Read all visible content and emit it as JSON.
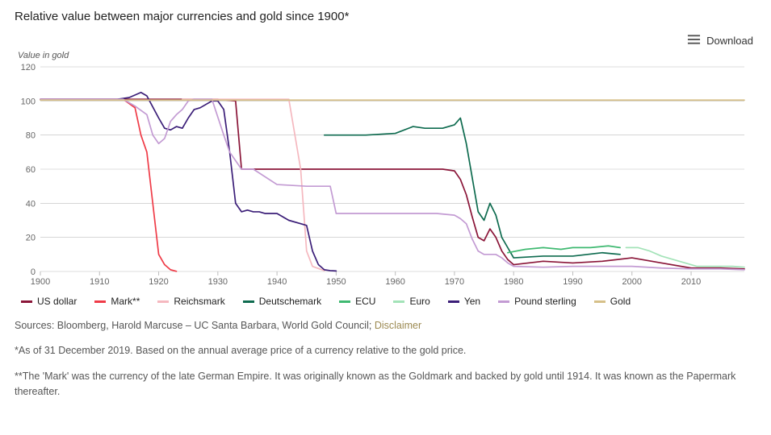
{
  "title": "Relative value between major currencies and gold since 1900*",
  "download_label": "Download",
  "y_axis_title": "Value in gold",
  "chart": {
    "type": "line",
    "xlim": [
      1900,
      2019
    ],
    "ylim": [
      0,
      120
    ],
    "xtick_step": 10,
    "ytick_step": 20,
    "xticks": [
      1900,
      1910,
      1920,
      1930,
      1940,
      1950,
      1960,
      1970,
      1980,
      1990,
      2000,
      2010
    ],
    "yticks": [
      0,
      20,
      40,
      60,
      80,
      100,
      120
    ],
    "background_color": "#ffffff",
    "grid_color": "#bdbdbd",
    "axis_label_color": "#666666",
    "axis_label_fontsize": 11,
    "line_width": 1.7,
    "series": [
      {
        "name": "US dollar",
        "color": "#8a1538",
        "data": [
          [
            1900,
            101
          ],
          [
            1910,
            101
          ],
          [
            1914,
            101
          ],
          [
            1918,
            101
          ],
          [
            1920,
            101
          ],
          [
            1930,
            101
          ],
          [
            1933,
            100
          ],
          [
            1934,
            60
          ],
          [
            1940,
            60
          ],
          [
            1950,
            60
          ],
          [
            1960,
            60
          ],
          [
            1968,
            60
          ],
          [
            1970,
            59
          ],
          [
            1971,
            54
          ],
          [
            1972,
            45
          ],
          [
            1973,
            32
          ],
          [
            1974,
            20
          ],
          [
            1975,
            18
          ],
          [
            1976,
            25
          ],
          [
            1977,
            20
          ],
          [
            1978,
            12
          ],
          [
            1979,
            7
          ],
          [
            1980,
            4
          ],
          [
            1985,
            6
          ],
          [
            1990,
            5
          ],
          [
            1995,
            6
          ],
          [
            2000,
            8
          ],
          [
            2005,
            5
          ],
          [
            2010,
            2
          ],
          [
            2015,
            2
          ],
          [
            2019,
            1.5
          ]
        ]
      },
      {
        "name": "Mark**",
        "color": "#ef3b47",
        "data": [
          [
            1900,
            101
          ],
          [
            1910,
            101
          ],
          [
            1914,
            101
          ],
          [
            1916,
            96
          ],
          [
            1917,
            80
          ],
          [
            1918,
            70
          ],
          [
            1919,
            40
          ],
          [
            1920,
            10
          ],
          [
            1921,
            4
          ],
          [
            1922,
            1
          ],
          [
            1923,
            0.1
          ]
        ]
      },
      {
        "name": "Reichsmark",
        "color": "#f5b8bf",
        "data": [
          [
            1924,
            101
          ],
          [
            1930,
            101
          ],
          [
            1935,
            101
          ],
          [
            1940,
            101
          ],
          [
            1942,
            101
          ],
          [
            1944,
            60
          ],
          [
            1945,
            12
          ],
          [
            1946,
            3
          ],
          [
            1948,
            0.5
          ]
        ]
      },
      {
        "name": "Deutschemark",
        "color": "#0e6b4f",
        "data": [
          [
            1948,
            80
          ],
          [
            1950,
            80
          ],
          [
            1955,
            80
          ],
          [
            1960,
            81
          ],
          [
            1963,
            85
          ],
          [
            1965,
            84
          ],
          [
            1968,
            84
          ],
          [
            1969,
            85
          ],
          [
            1970,
            86
          ],
          [
            1971,
            90
          ],
          [
            1972,
            75
          ],
          [
            1973,
            55
          ],
          [
            1974,
            35
          ],
          [
            1975,
            30
          ],
          [
            1976,
            40
          ],
          [
            1977,
            33
          ],
          [
            1978,
            20
          ],
          [
            1979,
            14
          ],
          [
            1980,
            8
          ],
          [
            1985,
            9
          ],
          [
            1990,
            9
          ],
          [
            1995,
            11
          ],
          [
            1998,
            10
          ]
        ]
      },
      {
        "name": "ECU",
        "color": "#3fb971",
        "data": [
          [
            1979,
            11
          ],
          [
            1982,
            13
          ],
          [
            1985,
            14
          ],
          [
            1988,
            13
          ],
          [
            1990,
            14
          ],
          [
            1993,
            14
          ],
          [
            1996,
            15
          ],
          [
            1998,
            14
          ]
        ]
      },
      {
        "name": "Euro",
        "color": "#a3e3b8",
        "data": [
          [
            1999,
            14
          ],
          [
            2001,
            14
          ],
          [
            2003,
            12
          ],
          [
            2005,
            9
          ],
          [
            2007,
            7
          ],
          [
            2009,
            5
          ],
          [
            2011,
            3
          ],
          [
            2013,
            3
          ],
          [
            2015,
            3
          ],
          [
            2017,
            3
          ],
          [
            2019,
            2.5
          ]
        ]
      },
      {
        "name": "Yen",
        "color": "#3b1e78",
        "data": [
          [
            1900,
            101
          ],
          [
            1905,
            101
          ],
          [
            1910,
            101
          ],
          [
            1913,
            101
          ],
          [
            1915,
            102
          ],
          [
            1917,
            105
          ],
          [
            1918,
            103
          ],
          [
            1920,
            90
          ],
          [
            1921,
            84
          ],
          [
            1922,
            83
          ],
          [
            1923,
            85
          ],
          [
            1924,
            84
          ],
          [
            1925,
            90
          ],
          [
            1926,
            95
          ],
          [
            1927,
            96
          ],
          [
            1928,
            98
          ],
          [
            1929,
            100
          ],
          [
            1930,
            100
          ],
          [
            1931,
            95
          ],
          [
            1932,
            70
          ],
          [
            1933,
            40
          ],
          [
            1934,
            35
          ],
          [
            1935,
            36
          ],
          [
            1936,
            35
          ],
          [
            1937,
            35
          ],
          [
            1938,
            34
          ],
          [
            1940,
            34
          ],
          [
            1942,
            30
          ],
          [
            1944,
            28
          ],
          [
            1945,
            27
          ],
          [
            1946,
            12
          ],
          [
            1947,
            4
          ],
          [
            1948,
            1
          ],
          [
            1949,
            0.5
          ],
          [
            1950,
            0.3
          ]
        ]
      },
      {
        "name": "Pound sterling",
        "color": "#c39bd3",
        "data": [
          [
            1900,
            101
          ],
          [
            1910,
            101
          ],
          [
            1914,
            101
          ],
          [
            1916,
            97
          ],
          [
            1918,
            92
          ],
          [
            1919,
            80
          ],
          [
            1920,
            75
          ],
          [
            1921,
            78
          ],
          [
            1922,
            88
          ],
          [
            1923,
            92
          ],
          [
            1924,
            95
          ],
          [
            1925,
            100
          ],
          [
            1926,
            101
          ],
          [
            1929,
            101
          ],
          [
            1931,
            80
          ],
          [
            1932,
            70
          ],
          [
            1934,
            60
          ],
          [
            1935,
            60
          ],
          [
            1936,
            60
          ],
          [
            1940,
            51
          ],
          [
            1945,
            50
          ],
          [
            1949,
            50
          ],
          [
            1950,
            34
          ],
          [
            1955,
            34
          ],
          [
            1960,
            34
          ],
          [
            1965,
            34
          ],
          [
            1967,
            34
          ],
          [
            1970,
            33
          ],
          [
            1971,
            31
          ],
          [
            1972,
            28
          ],
          [
            1973,
            19
          ],
          [
            1974,
            12
          ],
          [
            1975,
            10
          ],
          [
            1976,
            10
          ],
          [
            1977,
            10
          ],
          [
            1978,
            8
          ],
          [
            1979,
            5
          ],
          [
            1980,
            3
          ],
          [
            1985,
            2.5
          ],
          [
            1990,
            3
          ],
          [
            1995,
            3
          ],
          [
            2000,
            3
          ],
          [
            2005,
            2
          ],
          [
            2010,
            1.5
          ],
          [
            2015,
            1.5
          ],
          [
            2019,
            1
          ]
        ]
      },
      {
        "name": "Gold",
        "color": "#d6c089",
        "data": [
          [
            1900,
            100.5
          ],
          [
            1910,
            100.5
          ],
          [
            1920,
            100.5
          ],
          [
            1930,
            100.5
          ],
          [
            1940,
            100.5
          ],
          [
            1950,
            100.5
          ],
          [
            1960,
            100.5
          ],
          [
            1970,
            100.5
          ],
          [
            1980,
            100.5
          ],
          [
            1990,
            100.5
          ],
          [
            2000,
            100.5
          ],
          [
            2010,
            100.5
          ],
          [
            2019,
            100.5
          ]
        ]
      }
    ]
  },
  "sources_prefix": "Sources: Bloomberg, Harold Marcuse – UC Santa Barbara, World Gold Council; ",
  "disclaimer_label": "Disclaimer",
  "note1": "*As of 31 December 2019. Based on the annual average price of a currency relative to the gold price.",
  "note2": "**The 'Mark' was the currency of the late German Empire. It was originally known as the Goldmark and backed by gold until 1914. It was known as the Papermark thereafter."
}
